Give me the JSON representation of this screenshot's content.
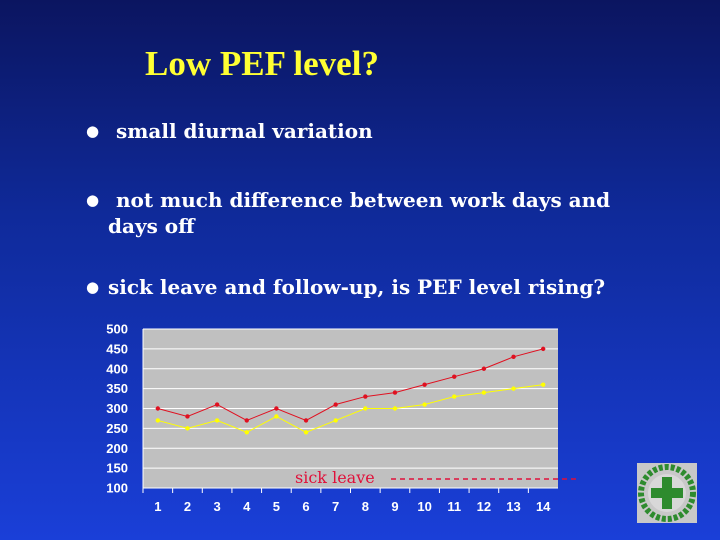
{
  "slide": {
    "title": "Low PEF level?",
    "bullets": [
      {
        "text": "small diurnal variation"
      },
      {
        "text": "not much difference between work days and",
        "text2": "days off"
      },
      {
        "text": "sick leave and follow-up, is  PEF level rising?"
      }
    ],
    "bullet_glyph": "●"
  },
  "colors": {
    "series_high": "#e01020",
    "series_low": "#ffff00",
    "plot_bg": "#c0c0c0",
    "annotation": "#e0103a",
    "title": "#ffff33"
  },
  "chart_data": {
    "type": "line",
    "categories": [
      "1",
      "2",
      "3",
      "4",
      "5",
      "6",
      "7",
      "8",
      "9",
      "10",
      "11",
      "12",
      "13",
      "14"
    ],
    "series": [
      {
        "values": [
          300,
          280,
          310,
          270,
          300,
          270,
          310,
          330,
          340,
          360,
          380,
          400,
          430,
          450
        ],
        "color": "#e01020"
      },
      {
        "values": [
          270,
          250,
          270,
          240,
          280,
          240,
          270,
          300,
          300,
          310,
          330,
          340,
          350,
          360
        ],
        "color": "#ffff00"
      }
    ],
    "ylim": [
      100,
      500
    ],
    "yticks": [
      "100",
      "150",
      "200",
      "250",
      "300",
      "350",
      "400",
      "450",
      "500"
    ],
    "grid": true,
    "annotation": {
      "text": "sick leave",
      "style": "dashed red line from day 8 onward"
    }
  },
  "logo": {
    "name": "cross-emblem-logo",
    "text": "1945"
  }
}
